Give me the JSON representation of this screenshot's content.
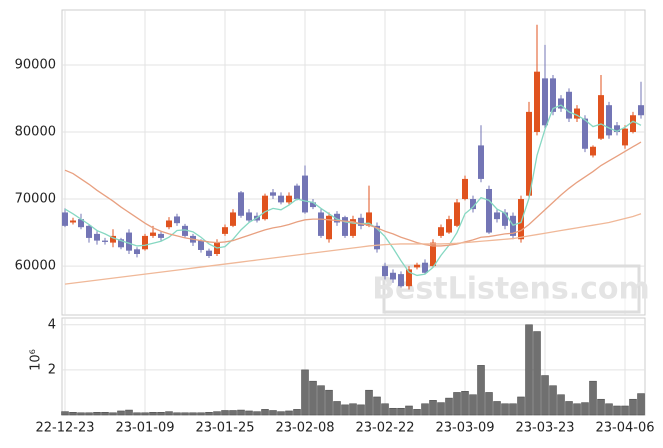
{
  "chart_data": {
    "type": "candlestick",
    "watermark": "BestListens.com",
    "categories": [
      "22-12-23",
      null,
      null,
      null,
      null,
      null,
      null,
      null,
      null,
      null,
      "23-01-09",
      null,
      null,
      null,
      null,
      null,
      null,
      null,
      null,
      null,
      "23-01-25",
      null,
      null,
      null,
      null,
      null,
      null,
      null,
      null,
      null,
      "23-02-08",
      null,
      null,
      null,
      null,
      null,
      null,
      null,
      null,
      null,
      "23-02-22",
      null,
      null,
      null,
      null,
      null,
      null,
      null,
      null,
      null,
      "23-03-09",
      null,
      null,
      null,
      null,
      null,
      null,
      null,
      null,
      null,
      "23-03-23",
      null,
      null,
      null,
      null,
      null,
      null,
      null,
      null,
      null,
      "23-04-06",
      null,
      null
    ],
    "open": [
      68000,
      66500,
      67000,
      66000,
      64800,
      63800,
      63500,
      64000,
      65000,
      62500,
      62500,
      64500,
      64800,
      65800,
      67400,
      66000,
      64500,
      63800,
      62300,
      61800,
      64800,
      66000,
      71000,
      68000,
      67500,
      67000,
      71000,
      70500,
      69500,
      72000,
      73500,
      69500,
      68000,
      64000,
      67800,
      67300,
      64500,
      67200,
      66000,
      66000,
      60000,
      59000,
      58800,
      57000,
      59800,
      60500,
      60000,
      64500,
      65000,
      66000,
      70000,
      70000,
      78000,
      71500,
      68000,
      68000,
      67500,
      64000,
      70500,
      80000,
      88000,
      88000,
      85000,
      86000,
      82000,
      82000,
      76500,
      79000,
      84000,
      81000,
      78000,
      80000,
      84000
    ],
    "high": [
      68600,
      67200,
      67800,
      66200,
      65200,
      64200,
      65500,
      64200,
      65500,
      62800,
      64800,
      66000,
      65200,
      67300,
      67800,
      66300,
      64800,
      64000,
      62600,
      64000,
      66200,
      68500,
      71200,
      68500,
      68000,
      70800,
      71500,
      71000,
      71000,
      72300,
      75000,
      70000,
      68500,
      68000,
      68200,
      67500,
      67500,
      67800,
      72000,
      66500,
      60500,
      59500,
      59200,
      60000,
      60500,
      61000,
      64000,
      66200,
      67500,
      70000,
      73500,
      70500,
      81000,
      72000,
      68500,
      68500,
      68000,
      70500,
      84500,
      96000,
      93000,
      88500,
      85500,
      86500,
      84000,
      82500,
      78000,
      88500,
      84500,
      81500,
      81000,
      83000,
      87500
    ],
    "low": [
      65800,
      66200,
      65500,
      63500,
      63200,
      63200,
      62800,
      62500,
      61800,
      61300,
      62300,
      64200,
      63800,
      65500,
      66000,
      64200,
      63000,
      62000,
      61200,
      61500,
      64500,
      65800,
      67200,
      66500,
      66500,
      66800,
      70000,
      69200,
      69200,
      69800,
      67800,
      68500,
      64200,
      63500,
      66000,
      64200,
      64200,
      65500,
      65800,
      62000,
      58000,
      57500,
      56800,
      56500,
      59500,
      58800,
      59800,
      64200,
      64800,
      65800,
      69800,
      68000,
      72500,
      64800,
      66500,
      65500,
      64000,
      63500,
      70000,
      79500,
      80500,
      82500,
      83000,
      81500,
      81500,
      77000,
      76200,
      78800,
      79000,
      79500,
      77500,
      79800,
      82000
    ],
    "close": [
      66000,
      66800,
      65800,
      64200,
      63800,
      63600,
      64500,
      62800,
      62300,
      61800,
      64500,
      65000,
      64200,
      66800,
      66400,
      64500,
      63500,
      62400,
      61500,
      63500,
      65800,
      68000,
      67500,
      66800,
      66800,
      70500,
      70500,
      69500,
      70500,
      70000,
      68000,
      68800,
      64500,
      67500,
      66500,
      64500,
      67000,
      66000,
      68000,
      62500,
      58500,
      58000,
      57000,
      59500,
      60200,
      59000,
      63500,
      65800,
      67000,
      69500,
      73000,
      68500,
      73000,
      65000,
      67000,
      66000,
      64500,
      70000,
      83000,
      89000,
      81000,
      83000,
      83500,
      82000,
      83500,
      77500,
      77800,
      85500,
      79500,
      80000,
      80500,
      82500,
      82500
    ],
    "up_color": "#e0531f",
    "down_color": "#7375b5",
    "lines": [
      {
        "color": "#86d8c2",
        "values": [
          68500,
          67800,
          67000,
          66200,
          65300,
          64800,
          64200,
          63800,
          63400,
          63000,
          63100,
          63400,
          63700,
          64300,
          65300,
          65400,
          65100,
          64300,
          63300,
          62700,
          62900,
          64000,
          65400,
          66500,
          67200,
          68100,
          68600,
          68400,
          69100,
          70000,
          69700,
          69500,
          68600,
          67800,
          67000,
          66600,
          66400,
          66300,
          66400,
          65600,
          64400,
          62700,
          60800,
          59100,
          58600,
          58800,
          59800,
          61600,
          63100,
          65000,
          67800,
          68800,
          70200,
          69800,
          68500,
          67900,
          66100,
          66500,
          70100,
          76500,
          80400,
          83500,
          84000,
          83000,
          82500,
          81800,
          80800,
          81200,
          80600,
          80100,
          80700,
          81600,
          81000
        ]
      },
      {
        "color": "#e8a080",
        "values": [
          74300,
          73800,
          73000,
          72200,
          71300,
          70500,
          69700,
          68800,
          68000,
          67200,
          66400,
          65700,
          65200,
          64800,
          64500,
          64200,
          64000,
          63800,
          63600,
          63500,
          63600,
          63800,
          64200,
          64600,
          65000,
          65400,
          65700,
          65900,
          66200,
          66600,
          66900,
          67000,
          67000,
          66900,
          66800,
          66700,
          66600,
          66300,
          66100,
          65700,
          65200,
          64800,
          64300,
          63900,
          63500,
          63200,
          63000,
          63000,
          63100,
          63300,
          63600,
          63900,
          64300,
          64400,
          64600,
          64800,
          64900,
          65300,
          66200,
          67300,
          68400,
          69500,
          70600,
          71600,
          72500,
          73300,
          74100,
          75000,
          75700,
          76400,
          77100,
          77800,
          78500
        ]
      },
      {
        "color": "#f0b898",
        "values": [
          57300,
          57450,
          57600,
          57750,
          57900,
          58050,
          58200,
          58350,
          58500,
          58650,
          58800,
          58950,
          59100,
          59250,
          59400,
          59550,
          59700,
          59850,
          60000,
          60150,
          60300,
          60450,
          60600,
          60750,
          60900,
          61050,
          61200,
          61350,
          61500,
          61650,
          61800,
          61950,
          62100,
          62250,
          62400,
          62550,
          62700,
          62850,
          63000,
          63100,
          63200,
          63250,
          63300,
          63300,
          63300,
          63300,
          63300,
          63300,
          63350,
          63400,
          63500,
          63600,
          63700,
          63800,
          63900,
          64000,
          64100,
          64300,
          64500,
          64700,
          64900,
          65100,
          65300,
          65500,
          65700,
          65900,
          66100,
          66300,
          66500,
          66800,
          67100,
          67400,
          67800
        ]
      }
    ],
    "ylim": [
      52700,
      98200
    ],
    "yticks": [
      60000,
      70000,
      80000,
      90000
    ],
    "volume": [
      0.15,
      0.12,
      0.1,
      0.1,
      0.12,
      0.12,
      0.1,
      0.18,
      0.22,
      0.1,
      0.1,
      0.12,
      0.12,
      0.15,
      0.1,
      0.1,
      0.1,
      0.1,
      0.12,
      0.15,
      0.2,
      0.2,
      0.22,
      0.18,
      0.15,
      0.25,
      0.2,
      0.15,
      0.18,
      0.25,
      2.0,
      1.5,
      1.3,
      1.1,
      0.6,
      0.45,
      0.5,
      0.45,
      1.1,
      0.8,
      0.5,
      0.3,
      0.3,
      0.4,
      0.25,
      0.5,
      0.65,
      0.55,
      0.75,
      1.0,
      1.05,
      0.9,
      2.2,
      1.0,
      0.6,
      0.5,
      0.5,
      0.8,
      4.0,
      3.7,
      1.75,
      1.3,
      0.9,
      0.6,
      0.5,
      0.55,
      1.5,
      0.7,
      0.5,
      0.4,
      0.4,
      0.7,
      0.95
    ],
    "volume_color": "#707070",
    "volume_ylim": [
      0,
      4.3
    ],
    "volume_yticks": [
      2,
      4
    ],
    "volume_scale_label": "10⁶",
    "grid": true
  }
}
